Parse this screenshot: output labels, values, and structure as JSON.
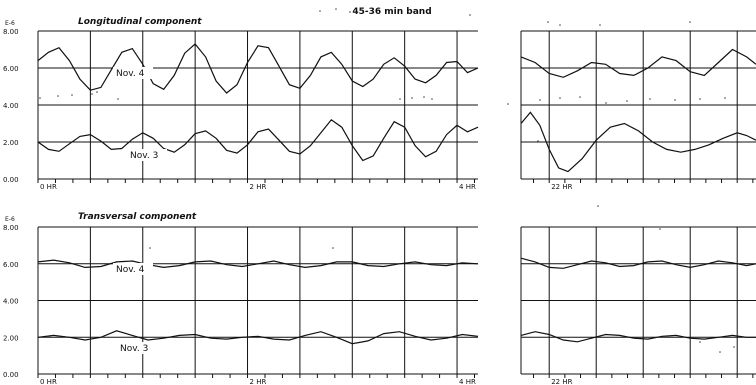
{
  "figure": {
    "title": "45-36 min band"
  },
  "chart_data": [
    {
      "type": "line",
      "title": "Longitudinal component",
      "yunit": "E-6",
      "yticks": [
        "0.00",
        "2.00",
        "4.00",
        "6.00",
        "8.00"
      ],
      "ylim": [
        0,
        8
      ],
      "segments": [
        {
          "xlim": [
            0,
            4.2
          ],
          "xticks": [
            {
              "x": 0,
              "label": "0 HR"
            },
            {
              "x": 2,
              "label": "2 HR"
            },
            {
              "x": 4,
              "label": "4 HR"
            }
          ]
        },
        {
          "xlim": [
            21.7,
            24.2
          ],
          "xticks": [
            {
              "x": 22,
              "label": "22 HR"
            }
          ]
        }
      ],
      "series": [
        {
          "name": "Nov. 4",
          "baseline": 6.0,
          "segment1": [
            [
              0,
              6.4
            ],
            [
              0.1,
              6.85
            ],
            [
              0.2,
              7.1
            ],
            [
              0.3,
              6.4
            ],
            [
              0.4,
              5.4
            ],
            [
              0.5,
              4.8
            ],
            [
              0.6,
              4.95
            ],
            [
              0.7,
              5.9
            ],
            [
              0.8,
              6.85
            ],
            [
              0.9,
              7.05
            ],
            [
              1.0,
              6.2
            ],
            [
              1.1,
              5.15
            ],
            [
              1.2,
              4.85
            ],
            [
              1.3,
              5.6
            ],
            [
              1.4,
              6.8
            ],
            [
              1.5,
              7.3
            ],
            [
              1.6,
              6.6
            ],
            [
              1.7,
              5.3
            ],
            [
              1.8,
              4.65
            ],
            [
              1.9,
              5.1
            ],
            [
              2.0,
              6.3
            ],
            [
              2.1,
              7.2
            ],
            [
              2.2,
              7.1
            ],
            [
              2.3,
              6.1
            ],
            [
              2.4,
              5.1
            ],
            [
              2.5,
              4.9
            ],
            [
              2.6,
              5.6
            ],
            [
              2.7,
              6.6
            ],
            [
              2.8,
              6.85
            ],
            [
              2.9,
              6.2
            ],
            [
              3.0,
              5.3
            ],
            [
              3.1,
              5.0
            ],
            [
              3.2,
              5.4
            ],
            [
              3.3,
              6.2
            ],
            [
              3.4,
              6.55
            ],
            [
              3.5,
              6.1
            ],
            [
              3.6,
              5.4
            ],
            [
              3.7,
              5.2
            ],
            [
              3.8,
              5.6
            ],
            [
              3.9,
              6.3
            ],
            [
              4.0,
              6.35
            ],
            [
              4.1,
              5.75
            ],
            [
              4.2,
              6.0
            ]
          ],
          "segment2": [
            [
              21.7,
              6.6
            ],
            [
              21.85,
              6.3
            ],
            [
              22.0,
              5.7
            ],
            [
              22.15,
              5.5
            ],
            [
              22.3,
              5.85
            ],
            [
              22.45,
              6.3
            ],
            [
              22.6,
              6.2
            ],
            [
              22.75,
              5.7
            ],
            [
              22.9,
              5.6
            ],
            [
              23.05,
              6.0
            ],
            [
              23.2,
              6.6
            ],
            [
              23.35,
              6.4
            ],
            [
              23.5,
              5.8
            ],
            [
              23.65,
              5.6
            ],
            [
              23.8,
              6.3
            ],
            [
              23.95,
              7.0
            ],
            [
              24.1,
              6.6
            ],
            [
              24.2,
              6.2
            ]
          ]
        },
        {
          "name": "Nov. 3",
          "baseline": 2.0,
          "segment1": [
            [
              0,
              2.0
            ],
            [
              0.1,
              1.6
            ],
            [
              0.2,
              1.5
            ],
            [
              0.3,
              1.9
            ],
            [
              0.4,
              2.3
            ],
            [
              0.5,
              2.4
            ],
            [
              0.6,
              2.05
            ],
            [
              0.7,
              1.6
            ],
            [
              0.8,
              1.65
            ],
            [
              0.9,
              2.15
            ],
            [
              1.0,
              2.5
            ],
            [
              1.1,
              2.2
            ],
            [
              1.2,
              1.65
            ],
            [
              1.3,
              1.45
            ],
            [
              1.4,
              1.85
            ],
            [
              1.5,
              2.45
            ],
            [
              1.6,
              2.6
            ],
            [
              1.7,
              2.2
            ],
            [
              1.8,
              1.55
            ],
            [
              1.9,
              1.4
            ],
            [
              2.0,
              1.85
            ],
            [
              2.1,
              2.55
            ],
            [
              2.2,
              2.7
            ],
            [
              2.3,
              2.1
            ],
            [
              2.4,
              1.5
            ],
            [
              2.5,
              1.35
            ],
            [
              2.6,
              1.8
            ],
            [
              2.7,
              2.5
            ],
            [
              2.8,
              3.2
            ],
            [
              2.9,
              2.8
            ],
            [
              3.0,
              1.8
            ],
            [
              3.1,
              1.0
            ],
            [
              3.2,
              1.25
            ],
            [
              3.3,
              2.2
            ],
            [
              3.4,
              3.1
            ],
            [
              3.5,
              2.8
            ],
            [
              3.6,
              1.8
            ],
            [
              3.7,
              1.2
            ],
            [
              3.8,
              1.5
            ],
            [
              3.9,
              2.4
            ],
            [
              4.0,
              2.9
            ],
            [
              4.1,
              2.55
            ],
            [
              4.2,
              2.8
            ]
          ],
          "segment2": [
            [
              21.7,
              3.0
            ],
            [
              21.8,
              3.6
            ],
            [
              21.9,
              2.9
            ],
            [
              22.0,
              1.6
            ],
            [
              22.1,
              0.6
            ],
            [
              22.2,
              0.4
            ],
            [
              22.35,
              1.1
            ],
            [
              22.5,
              2.1
            ],
            [
              22.65,
              2.8
            ],
            [
              22.8,
              3.0
            ],
            [
              22.95,
              2.6
            ],
            [
              23.1,
              2.0
            ],
            [
              23.25,
              1.6
            ],
            [
              23.4,
              1.45
            ],
            [
              23.55,
              1.6
            ],
            [
              23.7,
              1.85
            ],
            [
              23.85,
              2.2
            ],
            [
              24.0,
              2.5
            ],
            [
              24.1,
              2.35
            ],
            [
              24.2,
              2.1
            ]
          ]
        }
      ]
    },
    {
      "type": "line",
      "title": "Transversal component",
      "yunit": "E-6",
      "yticks": [
        "0.00",
        "2.00",
        "4.00",
        "6.00",
        "8.00"
      ],
      "ylim": [
        0,
        8
      ],
      "segments": [
        {
          "xlim": [
            0,
            4.2
          ],
          "xticks": [
            {
              "x": 0,
              "label": "0 HR"
            },
            {
              "x": 2,
              "label": "2 HR"
            },
            {
              "x": 4,
              "label": "4 HR"
            }
          ]
        },
        {
          "xlim": [
            21.7,
            24.2
          ],
          "xticks": [
            {
              "x": 22,
              "label": "22 HR"
            }
          ]
        }
      ],
      "series": [
        {
          "name": "Nov. 4",
          "baseline": 6.0,
          "segment1": [
            [
              0,
              6.1
            ],
            [
              0.15,
              6.2
            ],
            [
              0.3,
              6.05
            ],
            [
              0.45,
              5.8
            ],
            [
              0.6,
              5.85
            ],
            [
              0.75,
              6.1
            ],
            [
              0.9,
              6.15
            ],
            [
              1.05,
              5.95
            ],
            [
              1.2,
              5.8
            ],
            [
              1.35,
              5.9
            ],
            [
              1.5,
              6.1
            ],
            [
              1.65,
              6.15
            ],
            [
              1.8,
              5.95
            ],
            [
              1.95,
              5.85
            ],
            [
              2.1,
              6.0
            ],
            [
              2.25,
              6.15
            ],
            [
              2.4,
              5.95
            ],
            [
              2.55,
              5.8
            ],
            [
              2.7,
              5.9
            ],
            [
              2.85,
              6.1
            ],
            [
              3.0,
              6.1
            ],
            [
              3.15,
              5.9
            ],
            [
              3.3,
              5.85
            ],
            [
              3.45,
              6.0
            ],
            [
              3.6,
              6.1
            ],
            [
              3.75,
              5.95
            ],
            [
              3.9,
              5.9
            ],
            [
              4.05,
              6.05
            ],
            [
              4.2,
              6.0
            ]
          ],
          "segment2": [
            [
              21.7,
              6.3
            ],
            [
              21.85,
              6.1
            ],
            [
              22.0,
              5.8
            ],
            [
              22.15,
              5.75
            ],
            [
              22.3,
              5.95
            ],
            [
              22.45,
              6.15
            ],
            [
              22.6,
              6.05
            ],
            [
              22.75,
              5.85
            ],
            [
              22.9,
              5.9
            ],
            [
              23.05,
              6.1
            ],
            [
              23.2,
              6.15
            ],
            [
              23.35,
              5.95
            ],
            [
              23.5,
              5.8
            ],
            [
              23.65,
              5.95
            ],
            [
              23.8,
              6.15
            ],
            [
              23.95,
              6.05
            ],
            [
              24.1,
              5.9
            ],
            [
              24.2,
              6.0
            ]
          ]
        },
        {
          "name": "Nov. 3",
          "baseline": 2.0,
          "segment1": [
            [
              0,
              2.0
            ],
            [
              0.15,
              2.1
            ],
            [
              0.3,
              2.0
            ],
            [
              0.45,
              1.85
            ],
            [
              0.6,
              2.0
            ],
            [
              0.75,
              2.35
            ],
            [
              0.9,
              2.1
            ],
            [
              1.05,
              1.85
            ],
            [
              1.2,
              1.95
            ],
            [
              1.35,
              2.1
            ],
            [
              1.5,
              2.15
            ],
            [
              1.65,
              1.95
            ],
            [
              1.8,
              1.9
            ],
            [
              1.95,
              2.0
            ],
            [
              2.1,
              2.05
            ],
            [
              2.25,
              1.9
            ],
            [
              2.4,
              1.85
            ],
            [
              2.55,
              2.1
            ],
            [
              2.7,
              2.3
            ],
            [
              2.85,
              2.0
            ],
            [
              3.0,
              1.65
            ],
            [
              3.15,
              1.8
            ],
            [
              3.3,
              2.2
            ],
            [
              3.45,
              2.3
            ],
            [
              3.6,
              2.05
            ],
            [
              3.75,
              1.85
            ],
            [
              3.9,
              1.95
            ],
            [
              4.05,
              2.15
            ],
            [
              4.2,
              2.05
            ]
          ],
          "segment2": [
            [
              21.7,
              2.1
            ],
            [
              21.85,
              2.3
            ],
            [
              22.0,
              2.15
            ],
            [
              22.15,
              1.85
            ],
            [
              22.3,
              1.75
            ],
            [
              22.45,
              1.95
            ],
            [
              22.6,
              2.15
            ],
            [
              22.75,
              2.1
            ],
            [
              22.9,
              1.95
            ],
            [
              23.05,
              1.9
            ],
            [
              23.2,
              2.05
            ],
            [
              23.35,
              2.1
            ],
            [
              23.5,
              1.95
            ],
            [
              23.65,
              1.9
            ],
            [
              23.8,
              2.0
            ],
            [
              23.95,
              2.1
            ],
            [
              24.1,
              2.0
            ],
            [
              24.2,
              2.0
            ]
          ]
        }
      ]
    }
  ]
}
